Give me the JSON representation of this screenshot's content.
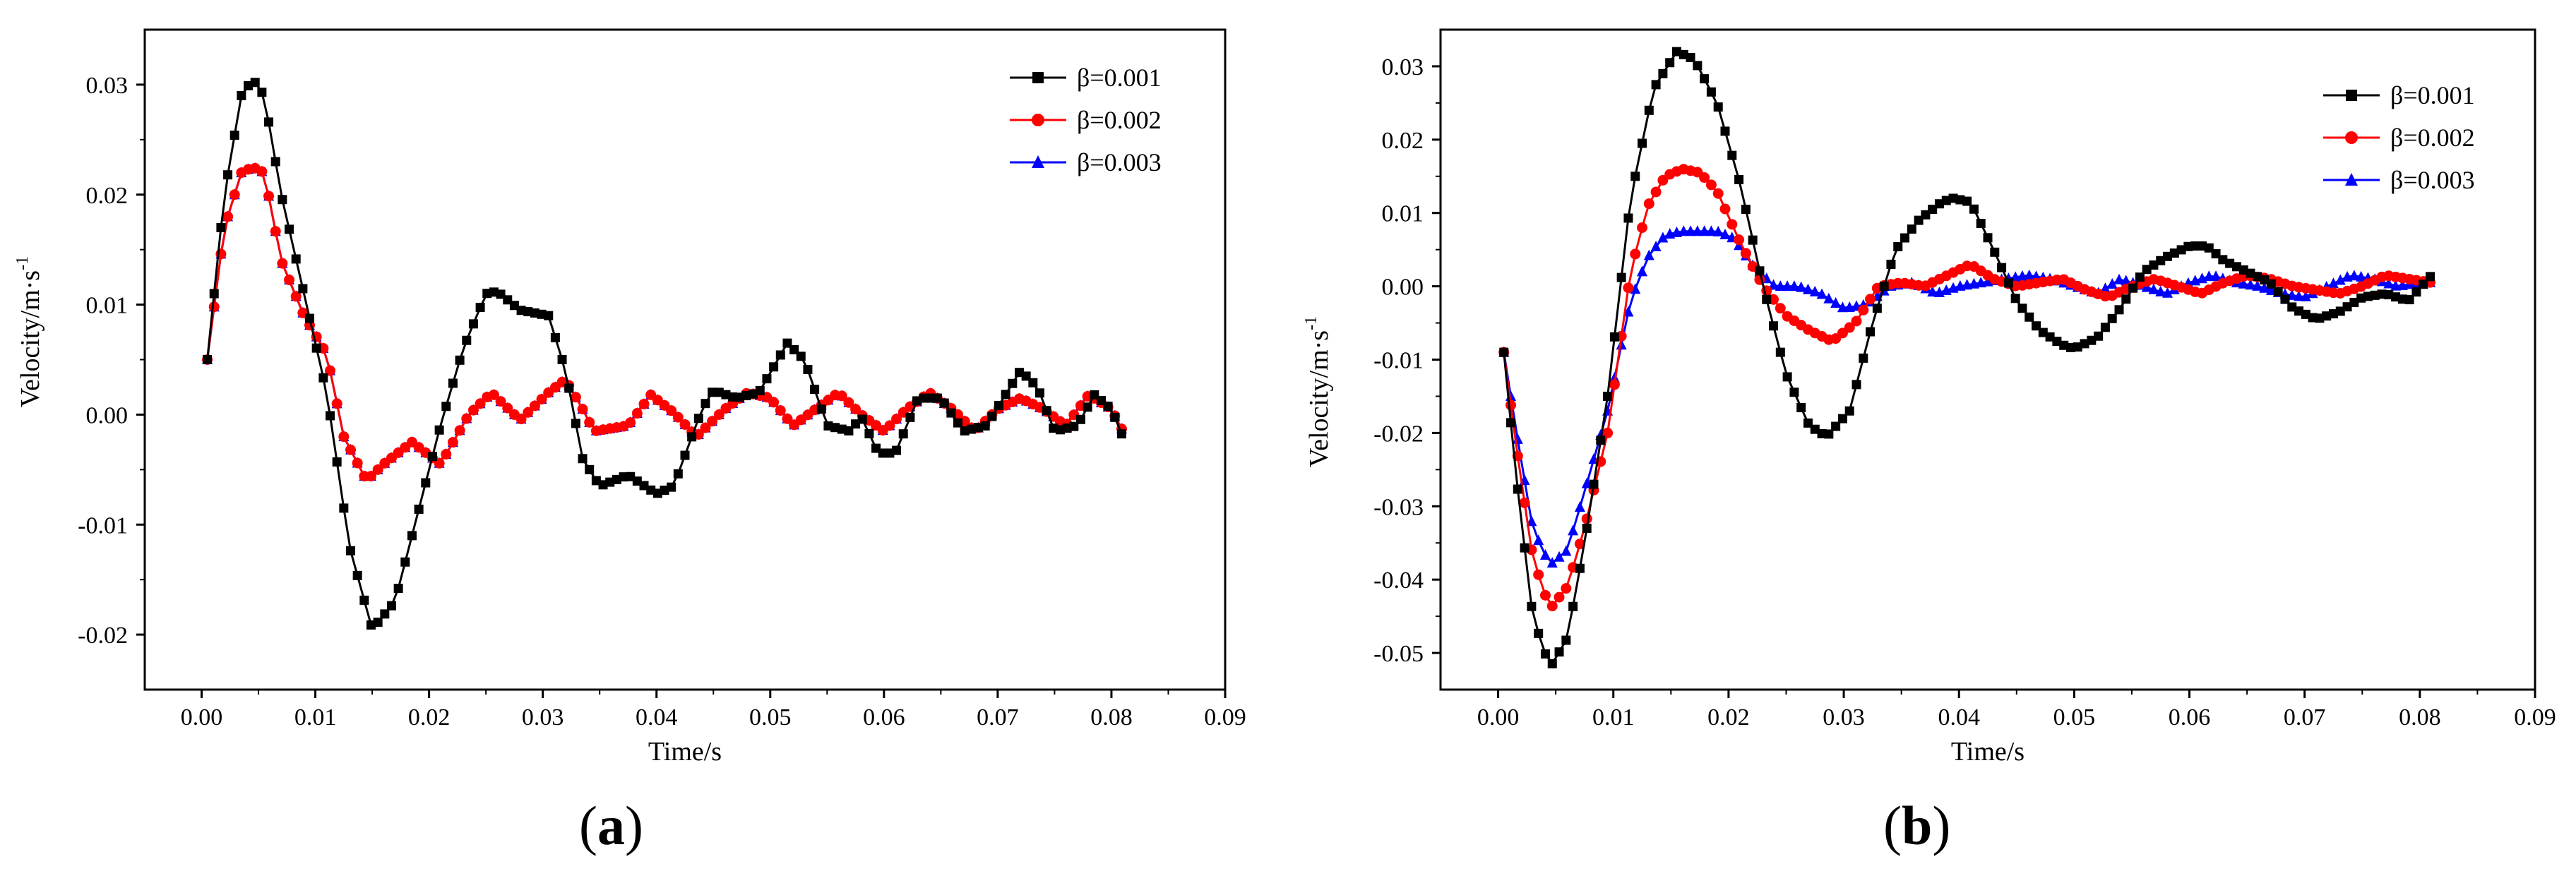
{
  "figure": {
    "panel_labels": [
      {
        "open": "(",
        "letter": "a",
        "close": ")"
      },
      {
        "open": "(",
        "letter": "b",
        "close": ")"
      }
    ]
  },
  "chart_data": [
    {
      "type": "line",
      "panel": "a",
      "xlabel": "Time/s",
      "ylabel": "Velocity/m·s",
      "ylabel_superscript": "-1",
      "xlim": [
        -0.005,
        0.09
      ],
      "ylim": [
        -0.025,
        0.035
      ],
      "xticks": [
        0.0,
        0.01,
        0.02,
        0.03,
        0.04,
        0.05,
        0.06,
        0.07,
        0.08,
        0.09
      ],
      "xtick_labels": [
        "0.00",
        "0.01",
        "0.02",
        "0.03",
        "0.04",
        "0.05",
        "0.06",
        "0.07",
        "0.08",
        "0.09"
      ],
      "yticks": [
        -0.02,
        -0.01,
        0.0,
        0.01,
        0.02,
        0.03
      ],
      "ytick_labels": [
        "-0.02",
        "-0.01",
        "0.00",
        "0.01",
        "0.02",
        "0.03"
      ],
      "grid": false,
      "legend_position": "top-right",
      "series": [
        {
          "name": "β=0.001",
          "color": "#000000",
          "marker": "square",
          "x": [
            0.0005,
            0.002,
            0.0035,
            0.0045,
            0.0055,
            0.007,
            0.009,
            0.011,
            0.013,
            0.015,
            0.017,
            0.019,
            0.021,
            0.023,
            0.025,
            0.026,
            0.028,
            0.0305,
            0.032,
            0.0335,
            0.035,
            0.0375,
            0.04,
            0.0415,
            0.044,
            0.045,
            0.047,
            0.049,
            0.0515,
            0.053,
            0.055,
            0.057,
            0.058,
            0.0595,
            0.061,
            0.063,
            0.065,
            0.067,
            0.069,
            0.072,
            0.0735,
            0.075,
            0.077,
            0.0785,
            0.08,
            0.081
          ],
          "y": [
            0.005,
            0.02,
            0.029,
            0.0305,
            0.029,
            0.02,
            0.011,
            0.002,
            -0.012,
            -0.0195,
            -0.017,
            -0.009,
            -0.001,
            0.006,
            0.011,
            0.0112,
            0.0095,
            0.009,
            0.004,
            -0.004,
            -0.0065,
            -0.0055,
            -0.0072,
            -0.0065,
            0.0005,
            0.0022,
            0.0015,
            0.002,
            0.0065,
            0.005,
            -0.001,
            -0.0015,
            -0.0002,
            -0.0035,
            -0.0035,
            0.0015,
            0.0015,
            -0.0015,
            -0.001,
            0.004,
            0.0025,
            -0.0015,
            -0.001,
            0.0018,
            0.0005,
            -0.002
          ]
        },
        {
          "name": "β=0.002",
          "color": "#ff0000",
          "marker": "circle",
          "x": [
            0.0005,
            0.002,
            0.0035,
            0.0045,
            0.0055,
            0.007,
            0.009,
            0.011,
            0.0125,
            0.0145,
            0.016,
            0.0185,
            0.021,
            0.0235,
            0.0255,
            0.028,
            0.0305,
            0.032,
            0.0335,
            0.0345,
            0.0375,
            0.0395,
            0.0415,
            0.0435,
            0.046,
            0.048,
            0.05,
            0.052,
            0.054,
            0.056,
            0.058,
            0.06,
            0.062,
            0.064,
            0.066,
            0.068,
            0.07,
            0.072,
            0.074,
            0.076,
            0.078,
            0.08,
            0.081
          ],
          "y": [
            0.005,
            0.017,
            0.022,
            0.0225,
            0.022,
            0.014,
            0.009,
            0.0055,
            -0.002,
            -0.006,
            -0.0045,
            -0.0025,
            -0.0045,
            0.0,
            0.002,
            -0.0005,
            0.002,
            0.0032,
            0.0005,
            -0.0015,
            -0.001,
            0.0018,
            0.0002,
            -0.002,
            0.0005,
            0.002,
            0.0015,
            -0.001,
            0.0005,
            0.002,
            0.0,
            -0.0015,
            0.0005,
            0.002,
            0.0005,
            -0.0015,
            0.0005,
            0.0015,
            0.0005,
            -0.001,
            0.0018,
            0.0005,
            -0.0015
          ]
        },
        {
          "name": "β=0.003",
          "color": "#0000ff",
          "marker": "triangle",
          "x": [
            0.0005,
            0.002,
            0.0035,
            0.0045,
            0.0055,
            0.007,
            0.009,
            0.011,
            0.0125,
            0.0145,
            0.016,
            0.0185,
            0.021,
            0.0235,
            0.0255,
            0.028,
            0.0305,
            0.032,
            0.0335,
            0.0345,
            0.0375,
            0.0395,
            0.0415,
            0.0435,
            0.046,
            0.048,
            0.05,
            0.052,
            0.054,
            0.056,
            0.058,
            0.06,
            0.062,
            0.064,
            0.066,
            0.068,
            0.07,
            0.072,
            0.074,
            0.076,
            0.078,
            0.08,
            0.081
          ],
          "y": [
            0.005,
            0.017,
            0.022,
            0.0225,
            0.022,
            0.014,
            0.009,
            0.0055,
            -0.002,
            -0.006,
            -0.0045,
            -0.0025,
            -0.0045,
            0.0,
            0.002,
            -0.0005,
            0.002,
            0.0032,
            0.0005,
            -0.0015,
            -0.001,
            0.0018,
            0.0002,
            -0.002,
            0.0005,
            0.002,
            0.0015,
            -0.001,
            0.0005,
            0.002,
            0.0,
            -0.0015,
            0.0005,
            0.002,
            0.0005,
            -0.0015,
            0.0005,
            0.0015,
            0.0005,
            -0.001,
            0.0018,
            0.0005,
            -0.0015
          ]
        }
      ]
    },
    {
      "type": "line",
      "panel": "b",
      "xlabel": "Time/s",
      "ylabel": "Velocity/m·s",
      "ylabel_superscript": "-1",
      "xlim": [
        -0.005,
        0.09
      ],
      "ylim": [
        -0.055,
        0.035
      ],
      "xticks": [
        0.0,
        0.01,
        0.02,
        0.03,
        0.04,
        0.05,
        0.06,
        0.07,
        0.08,
        0.09
      ],
      "xtick_labels": [
        "0.00",
        "0.01",
        "0.02",
        "0.03",
        "0.04",
        "0.05",
        "0.06",
        "0.07",
        "0.08",
        "0.09"
      ],
      "yticks": [
        -0.05,
        -0.04,
        -0.03,
        -0.02,
        -0.01,
        0.0,
        0.01,
        0.02,
        0.03
      ],
      "ytick_labels": [
        "-0.05",
        "-0.04",
        "-0.03",
        "-0.02",
        "-0.01",
        "0.00",
        "0.01",
        "0.02",
        "0.03"
      ],
      "grid": false,
      "legend_position": "top-right",
      "series": [
        {
          "name": "β=0.001",
          "color": "#000000",
          "marker": "square",
          "x": [
            0.0005,
            0.0015,
            0.003,
            0.0045,
            0.006,
            0.0075,
            0.0095,
            0.0115,
            0.0135,
            0.0155,
            0.017,
            0.019,
            0.021,
            0.023,
            0.025,
            0.027,
            0.0285,
            0.0305,
            0.0325,
            0.0345,
            0.0365,
            0.0385,
            0.0395,
            0.041,
            0.043,
            0.045,
            0.047,
            0.049,
            0.05,
            0.052,
            0.054,
            0.056,
            0.058,
            0.06,
            0.0615,
            0.063,
            0.065,
            0.067,
            0.069,
            0.071,
            0.073,
            0.075,
            0.077,
            0.079,
            0.081
          ],
          "y": [
            -0.009,
            -0.025,
            -0.045,
            -0.052,
            -0.048,
            -0.035,
            -0.015,
            0.012,
            0.027,
            0.032,
            0.031,
            0.025,
            0.014,
            0.0,
            -0.012,
            -0.019,
            -0.0205,
            -0.017,
            -0.005,
            0.005,
            0.009,
            0.0115,
            0.012,
            0.0115,
            0.005,
            -0.002,
            -0.006,
            -0.008,
            -0.0085,
            -0.007,
            -0.003,
            0.002,
            0.004,
            0.0055,
            0.0055,
            0.0035,
            0.002,
            0.0005,
            -0.003,
            -0.0045,
            -0.0035,
            -0.0015,
            -0.001,
            -0.002,
            0.0015
          ]
        },
        {
          "name": "β=0.002",
          "color": "#ff0000",
          "marker": "circle",
          "x": [
            0.0005,
            0.0015,
            0.003,
            0.0045,
            0.006,
            0.0075,
            0.0095,
            0.0115,
            0.013,
            0.0145,
            0.016,
            0.0175,
            0.019,
            0.021,
            0.023,
            0.025,
            0.027,
            0.029,
            0.031,
            0.033,
            0.035,
            0.037,
            0.039,
            0.041,
            0.043,
            0.045,
            0.047,
            0.049,
            0.051,
            0.053,
            0.055,
            0.057,
            0.059,
            0.061,
            0.063,
            0.065,
            0.067,
            0.069,
            0.071,
            0.073,
            0.075,
            0.077,
            0.079,
            0.081
          ],
          "y": [
            -0.009,
            -0.021,
            -0.037,
            -0.044,
            -0.041,
            -0.033,
            -0.02,
            0.002,
            0.011,
            0.015,
            0.016,
            0.0155,
            0.013,
            0.006,
            0.0,
            -0.004,
            -0.006,
            -0.0075,
            -0.005,
            0.0,
            0.0005,
            0.0,
            0.0015,
            0.003,
            0.001,
            0.0,
            0.0005,
            0.001,
            -0.0005,
            -0.0015,
            0.0,
            0.001,
            0.0,
            -0.001,
            0.0005,
            0.0015,
            0.001,
            0.0,
            -0.0005,
            -0.001,
            0.0,
            0.0015,
            0.001,
            0.0005
          ]
        },
        {
          "name": "β=0.003",
          "color": "#0000ff",
          "marker": "triangle",
          "x": [
            0.0005,
            0.0015,
            0.003,
            0.0045,
            0.006,
            0.0075,
            0.0095,
            0.0115,
            0.013,
            0.0145,
            0.016,
            0.0175,
            0.019,
            0.0205,
            0.022,
            0.024,
            0.026,
            0.028,
            0.03,
            0.032,
            0.034,
            0.036,
            0.038,
            0.04,
            0.042,
            0.044,
            0.046,
            0.048,
            0.05,
            0.052,
            0.054,
            0.056,
            0.058,
            0.06,
            0.062,
            0.064,
            0.066,
            0.068,
            0.07,
            0.072,
            0.074,
            0.076,
            0.078,
            0.08,
            0.081
          ],
          "y": [
            -0.009,
            -0.019,
            -0.033,
            -0.038,
            -0.036,
            -0.028,
            -0.017,
            -0.002,
            0.004,
            0.007,
            0.0075,
            0.0075,
            0.0075,
            0.0065,
            0.003,
            0.0,
            0.0,
            -0.001,
            -0.003,
            -0.0025,
            0.0,
            0.0005,
            -0.001,
            0.0,
            0.0005,
            0.001,
            0.0015,
            0.001,
            0.0,
            -0.001,
            0.001,
            0.0,
            -0.001,
            0.0005,
            0.0015,
            0.0005,
            0.0,
            -0.001,
            -0.0015,
            0.0,
            0.0015,
            0.001,
            0.0,
            0.0005,
            0.0005
          ]
        }
      ]
    }
  ]
}
